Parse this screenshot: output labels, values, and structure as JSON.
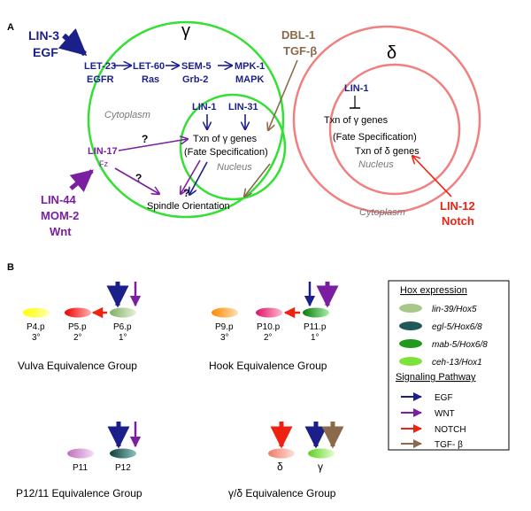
{
  "panel_a": {
    "label": "A",
    "gamma_symbol": "γ",
    "delta_symbol": "δ",
    "lin3": "LIN-3",
    "egf": "EGF",
    "let23": "LET-23",
    "egfr": "EGFR",
    "let60": "LET-60",
    "ras": "Ras",
    "sem5": "SEM-5",
    "grb2": "Grb-2",
    "mpk1": "MPK-1",
    "mapk": "MAPK",
    "dbl1": "DBL-1",
    "tgfb": "TGF-β",
    "cytoplasm_gamma": "Cytoplasm",
    "lin1_gamma": "LIN-1",
    "lin31": "LIN-31",
    "txn_gamma": "Txn of γ genes",
    "fate_gamma": "(Fate Specification)",
    "nucleus_gamma": "Nucleus",
    "lin17": "LIN-17",
    "fz": "Fz",
    "q1": "?",
    "q2": "?",
    "q3": "?",
    "spindle": "Spindle Orientation",
    "lin44": "LIN-44",
    "mom2": "MOM-2",
    "wnt": "Wnt",
    "lin1_delta": "LIN-1",
    "txn_gamma_delta": "Txn of γ genes",
    "fate_delta": "(Fate Specification)",
    "txn_delta": "Txn of δ genes",
    "nucleus_delta": "Nucleus",
    "cytoplasm_delta": "Cytoplasm",
    "lin12": "LIN-12",
    "notch": "Notch"
  },
  "panel_b": {
    "label": "B",
    "vulva": {
      "cells": [
        {
          "name": "P4.p",
          "fate": "3°"
        },
        {
          "name": "P5.p",
          "fate": "2°"
        },
        {
          "name": "P6.p",
          "fate": "1°"
        }
      ],
      "title": "Vulva Equivalence Group"
    },
    "hook": {
      "cells": [
        {
          "name": "P9.p",
          "fate": "3°"
        },
        {
          "name": "P10.p",
          "fate": "2°"
        },
        {
          "name": "P11.p",
          "fate": "1°"
        }
      ],
      "title": "Hook Equivalence Group"
    },
    "p12": {
      "cells": [
        {
          "name": "P11"
        },
        {
          "name": "P12"
        }
      ],
      "title": "P12/11 Equivalence Group"
    },
    "gd": {
      "cells": [
        {
          "name": "δ"
        },
        {
          "name": "γ"
        }
      ],
      "title": "γ/δ Equivalence Group"
    },
    "legend": {
      "hox_title": "Hox expression",
      "hox": [
        {
          "label": "lin-39/Hox5",
          "color": "#a6c98a"
        },
        {
          "label": "egl-5/Hox6/8",
          "color": "#1e5a57"
        },
        {
          "label": "mab-5/Hox6/8",
          "color": "#1f9a1f"
        },
        {
          "label": "ceh-13/Hox1",
          "color": "#7de23a"
        }
      ],
      "sig_title": "Signaling Pathway",
      "sig": [
        {
          "label": "EGF",
          "color": "#1b1f8a"
        },
        {
          "label": "WNT",
          "color": "#7a1fa0"
        },
        {
          "label": "NOTCH",
          "color": "#ee2211"
        },
        {
          "label": "TGF- β",
          "color": "#8a6a4a"
        }
      ]
    }
  },
  "colors": {
    "egf": "#1b1f8a",
    "wnt": "#7a1fa0",
    "notch": "#ee2211",
    "tgf": "#8a6a4a",
    "gamma_circle": "#33e033",
    "delta_circle": "#f08080"
  }
}
